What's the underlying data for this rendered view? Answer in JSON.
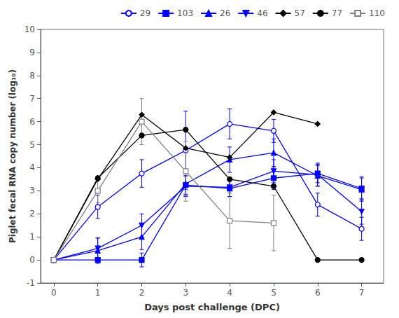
{
  "chart_data": {
    "type": "line",
    "xlabel": "Days post challenge (DPC)",
    "ylabel": "Piglet fecal RNA copy number (log₁₀)",
    "x": [
      0,
      1,
      2,
      3,
      4,
      5,
      6,
      7
    ],
    "xlim": [
      -0.3,
      7.5
    ],
    "xticks": [
      0,
      1,
      2,
      3,
      4,
      5,
      6,
      7
    ],
    "ylim": [
      -1,
      10
    ],
    "yticks": [
      -1,
      0,
      1,
      2,
      3,
      4,
      5,
      6,
      7,
      8,
      9,
      10
    ],
    "grid": false,
    "legend": "upper right",
    "series": [
      {
        "name": "29",
        "color": "#0000FF",
        "marker": "circle-open",
        "values": [
          0,
          2.3,
          3.75,
          4.75,
          5.9,
          5.6,
          2.4,
          1.35
        ],
        "yerr": [
          0,
          0.5,
          0.6,
          1.7,
          0.65,
          0.5,
          0.5,
          0.5
        ]
      },
      {
        "name": "103",
        "color": "#0000FF",
        "marker": "square",
        "values": [
          0,
          0.0,
          0.0,
          3.25,
          3.1,
          3.55,
          3.75,
          3.1
        ],
        "yerr": [
          0,
          0.0,
          0.3,
          0.4,
          0.35,
          0.5,
          0.4,
          0.5
        ]
      },
      {
        "name": "26",
        "color": "#0000FF",
        "marker": "triangle",
        "values": [
          0,
          0.4,
          1.0,
          3.3,
          4.35,
          4.65,
          3.65,
          3.05
        ],
        "yerr": [
          0,
          0.55,
          0.55,
          0.5,
          0.55,
          0.6,
          0.45,
          0.5
        ]
      },
      {
        "name": "46",
        "color": "#0000FF",
        "marker": "triangle-down",
        "values": [
          0,
          0.5,
          1.5,
          3.2,
          3.15,
          3.85,
          3.7,
          2.1
        ],
        "yerr": [
          0,
          0.45,
          0.5,
          0.45,
          0.4,
          0.5,
          0.5,
          0.55
        ]
      },
      {
        "name": "57",
        "color": "#000000",
        "marker": "diamond",
        "values": [
          0,
          3.5,
          6.3,
          4.85,
          4.45,
          6.4,
          5.9,
          null
        ],
        "yerr": [
          0,
          0.0,
          0.0,
          0.0,
          0.0,
          0.0,
          0.0,
          null
        ]
      },
      {
        "name": "77",
        "color": "#000000",
        "marker": "circle",
        "values": [
          0,
          3.55,
          5.4,
          5.65,
          3.5,
          3.2,
          0.0,
          0.0
        ],
        "yerr": [
          0,
          0.0,
          0.0,
          0.0,
          0.0,
          0.0,
          0.0,
          0.0
        ]
      },
      {
        "name": "110",
        "color": "#808080",
        "marker": "square-open",
        "values": [
          0,
          3.0,
          6.0,
          3.85,
          1.7,
          1.6,
          null,
          null
        ],
        "yerr": [
          0,
          0.5,
          1.0,
          1.3,
          1.2,
          1.2,
          null,
          null
        ]
      }
    ]
  }
}
